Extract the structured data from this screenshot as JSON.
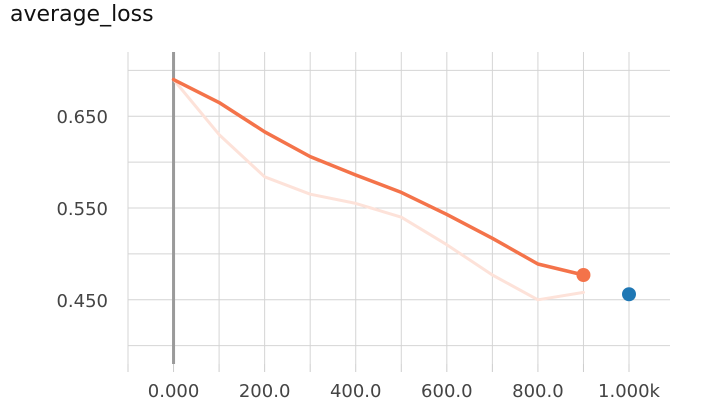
{
  "chart_data": {
    "type": "line",
    "title": "average_loss",
    "xlabel": "",
    "ylabel": "",
    "xlim": [
      -100,
      1090
    ],
    "ylim": [
      0.38,
      0.72
    ],
    "x_ticks": [
      "0.000",
      "200.0",
      "400.0",
      "600.0",
      "800.0",
      "1.000k"
    ],
    "x_tick_values": [
      0,
      200,
      400,
      600,
      800,
      1000
    ],
    "y_ticks": [
      "0.650",
      "0.550",
      "0.450"
    ],
    "y_tick_values": [
      0.65,
      0.55,
      0.45
    ],
    "grid": true,
    "series": [
      {
        "color": "#f4734a",
        "style": "smoothed",
        "x": [
          0,
          100,
          200,
          300,
          400,
          500,
          600,
          700,
          800,
          900
        ],
        "values": [
          0.69,
          0.665,
          0.633,
          0.606,
          0.586,
          0.567,
          0.543,
          0.517,
          0.489,
          0.477
        ],
        "endpoint_marker": true
      },
      {
        "color": "#fde2d9",
        "style": "raw",
        "x": [
          0,
          100,
          200,
          300,
          400,
          500,
          600,
          700,
          800,
          900
        ],
        "values": [
          0.69,
          0.63,
          0.584,
          0.565,
          0.555,
          0.54,
          0.51,
          0.477,
          0.45,
          0.458
        ]
      },
      {
        "color": "#1f77b4",
        "style": "point",
        "x": [
          1000
        ],
        "values": [
          0.456
        ]
      }
    ]
  }
}
